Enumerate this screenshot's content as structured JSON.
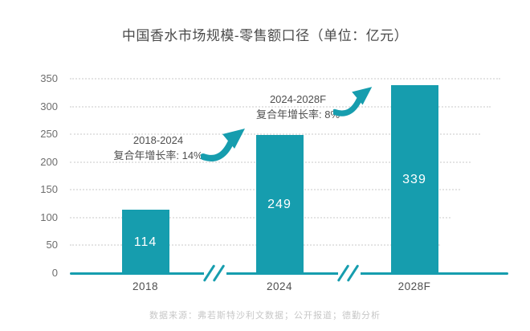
{
  "title": "中国香水市场规模-零售额口径（单位：亿元）",
  "footer": "数据来源：弗若斯特沙利文数据；公开报道；德勤分析",
  "colors": {
    "accent": "#169DAE",
    "title_text": "#4a4a4a",
    "tick_text": "#6e6e6e",
    "gridline": "#e4e4e4",
    "bar_label_text": "#ffffff",
    "footer_text": "#c7c7c7"
  },
  "chart_data": {
    "type": "bar",
    "title": "中国香水市场规模-零售额口径（单位：亿元）",
    "categories": [
      "2018",
      "2024",
      "2028F"
    ],
    "values": [
      114,
      249,
      339
    ],
    "bar_labels": [
      "114",
      "249",
      "339"
    ],
    "xlabel": "",
    "ylabel": "",
    "ylim": [
      0,
      350
    ],
    "yticks": [
      0,
      50,
      100,
      150,
      200,
      250,
      300,
      350
    ],
    "grid": "horizontal-dotted",
    "legend": "none",
    "bar_color": "#169DAE",
    "axis_breaks_between": [
      [
        "2018",
        "2024"
      ],
      [
        "2024",
        "2028F"
      ]
    ],
    "annotations": [
      {
        "line1": "2018-2024",
        "line2": "复合年增长率: 14%",
        "icon": "growth-arrow"
      },
      {
        "line1": "2024-2028F",
        "line2": "复合年增长率: 8%",
        "icon": "growth-arrow"
      }
    ]
  }
}
